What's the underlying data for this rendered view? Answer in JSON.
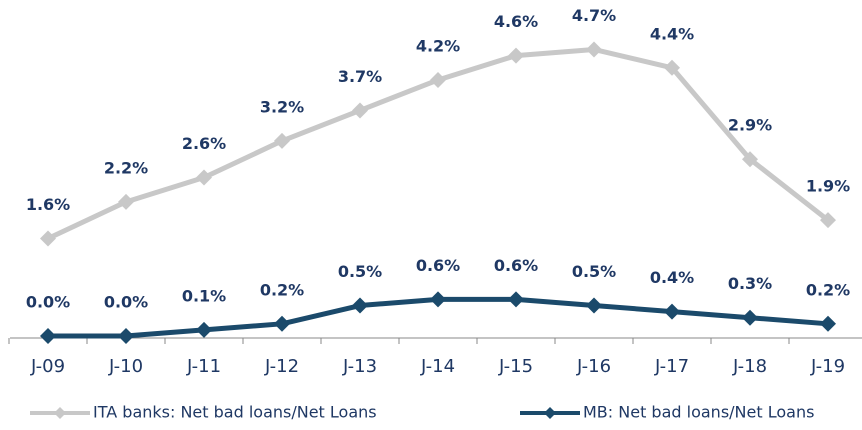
{
  "chart_data": {
    "type": "line",
    "categories": [
      "J-09",
      "J-10",
      "J-11",
      "J-12",
      "J-13",
      "J-14",
      "J-15",
      "J-16",
      "J-17",
      "J-18",
      "J-19"
    ],
    "series": [
      {
        "name": "ITA banks: Net bad loans/Net Loans",
        "color": "#c8c8c8",
        "values": [
          1.6,
          2.2,
          2.6,
          3.2,
          3.7,
          4.2,
          4.6,
          4.7,
          4.4,
          2.9,
          1.9
        ],
        "value_labels": [
          "1.6%",
          "2.2%",
          "2.6%",
          "3.2%",
          "3.7%",
          "4.2%",
          "4.6%",
          "4.7%",
          "4.4%",
          "2.9%",
          "1.9%"
        ]
      },
      {
        "name": "MB: Net bad loans/Net Loans",
        "color": "#1b4a6b",
        "values": [
          0.0,
          0.0,
          0.1,
          0.2,
          0.5,
          0.6,
          0.6,
          0.5,
          0.4,
          0.3,
          0.2
        ],
        "value_labels": [
          "0.0%",
          "0.0%",
          "0.1%",
          "0.2%",
          "0.5%",
          "0.6%",
          "0.6%",
          "0.5%",
          "0.4%",
          "0.3%",
          "0.2%"
        ]
      }
    ],
    "ylim": [
      0,
      5.2
    ],
    "legend": "bottom"
  }
}
